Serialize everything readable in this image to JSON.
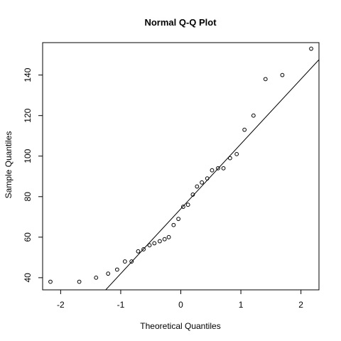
{
  "chart_data": {
    "type": "scatter",
    "title": "Normal Q-Q Plot",
    "xlabel": "Theoretical Quantiles",
    "ylabel": "Sample Quantiles",
    "xlim": [
      -2.3,
      2.3
    ],
    "ylim": [
      34,
      156
    ],
    "x_ticks": [
      -2,
      -1,
      0,
      1,
      2
    ],
    "x_tick_labels": [
      "-2",
      "-1",
      "0",
      "1",
      "2"
    ],
    "y_ticks": [
      40,
      60,
      80,
      100,
      120,
      140
    ],
    "y_tick_labels": [
      "40",
      "60",
      "80",
      "100",
      "120",
      "140"
    ],
    "grid": false,
    "points": [
      {
        "x": -2.17,
        "y": 38
      },
      {
        "x": -1.69,
        "y": 38
      },
      {
        "x": -1.41,
        "y": 40
      },
      {
        "x": -1.21,
        "y": 42
      },
      {
        "x": -1.06,
        "y": 44
      },
      {
        "x": -0.93,
        "y": 48
      },
      {
        "x": -0.82,
        "y": 48
      },
      {
        "x": -0.71,
        "y": 53
      },
      {
        "x": -0.62,
        "y": 54
      },
      {
        "x": -0.52,
        "y": 56
      },
      {
        "x": -0.44,
        "y": 57
      },
      {
        "x": -0.35,
        "y": 58
      },
      {
        "x": -0.27,
        "y": 59
      },
      {
        "x": -0.2,
        "y": 60
      },
      {
        "x": -0.12,
        "y": 66
      },
      {
        "x": -0.04,
        "y": 69
      },
      {
        "x": 0.04,
        "y": 75
      },
      {
        "x": 0.12,
        "y": 76
      },
      {
        "x": 0.2,
        "y": 81
      },
      {
        "x": 0.27,
        "y": 85
      },
      {
        "x": 0.35,
        "y": 87
      },
      {
        "x": 0.44,
        "y": 89
      },
      {
        "x": 0.52,
        "y": 93
      },
      {
        "x": 0.62,
        "y": 94
      },
      {
        "x": 0.71,
        "y": 94
      },
      {
        "x": 0.82,
        "y": 99
      },
      {
        "x": 0.93,
        "y": 101
      },
      {
        "x": 1.06,
        "y": 113
      },
      {
        "x": 1.21,
        "y": 120
      },
      {
        "x": 1.41,
        "y": 138
      },
      {
        "x": 1.69,
        "y": 140
      },
      {
        "x": 2.17,
        "y": 153
      }
    ],
    "reference_line": {
      "intercept": 74,
      "slope": 32
    },
    "colors": {
      "points": "#000000",
      "line": "#000000",
      "background": "#ffffff"
    }
  }
}
